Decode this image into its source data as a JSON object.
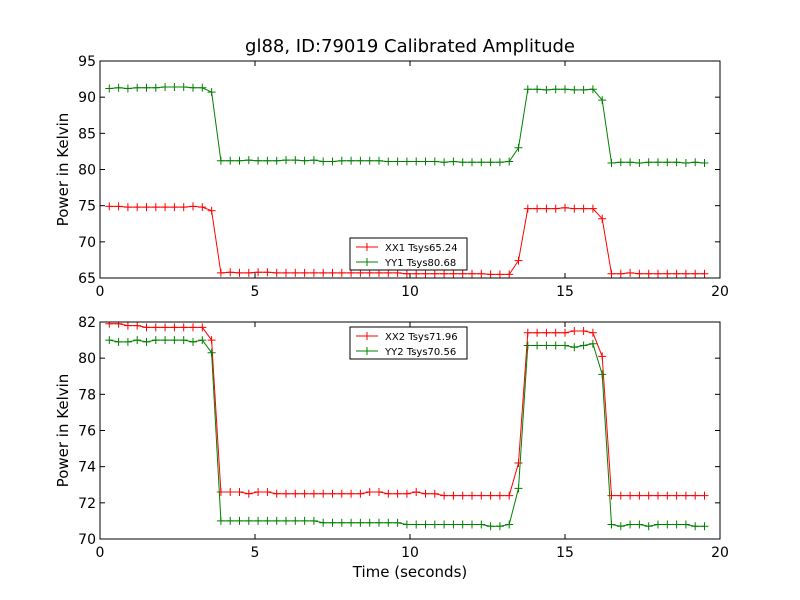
{
  "figure": {
    "title": "gl88, ID:79019 Calibrated Amplitude"
  },
  "chart_data": [
    {
      "type": "line",
      "xlabel": "",
      "ylabel": "Power in Kelvin",
      "xlim": [
        0,
        20
      ],
      "ylim": [
        65,
        95
      ],
      "xticks": [
        "0",
        "5",
        "10",
        "15",
        "20"
      ],
      "yticks": [
        "65",
        "70",
        "75",
        "80",
        "85",
        "90",
        "95"
      ],
      "grid": false,
      "legend_position": "bottom-center",
      "x": [
        0.3,
        0.6,
        0.9,
        1.2,
        1.5,
        1.8,
        2.1,
        2.4,
        2.7,
        3.0,
        3.3,
        3.6,
        3.9,
        4.2,
        4.5,
        4.8,
        5.1,
        5.4,
        5.7,
        6.0,
        6.3,
        6.6,
        6.9,
        7.2,
        7.5,
        7.8,
        8.1,
        8.4,
        8.7,
        9.0,
        9.3,
        9.6,
        9.9,
        10.2,
        10.5,
        10.8,
        11.1,
        11.4,
        11.7,
        12.0,
        12.3,
        12.6,
        12.9,
        13.2,
        13.5,
        13.8,
        14.1,
        14.4,
        14.7,
        15.0,
        15.3,
        15.6,
        15.9,
        16.2,
        16.5,
        16.8,
        17.1,
        17.4,
        17.7,
        18.0,
        18.3,
        18.6,
        18.9,
        19.2,
        19.5
      ],
      "series": [
        {
          "name": "XX1 Tsys65.24",
          "color": "#ff0000",
          "values": [
            74.9,
            74.9,
            74.8,
            74.8,
            74.8,
            74.8,
            74.8,
            74.8,
            74.8,
            74.9,
            74.8,
            74.3,
            65.7,
            65.8,
            65.7,
            65.7,
            65.8,
            65.8,
            65.7,
            65.7,
            65.7,
            65.7,
            65.7,
            65.7,
            65.7,
            65.7,
            65.7,
            65.7,
            65.7,
            65.7,
            65.7,
            65.7,
            65.6,
            65.6,
            65.6,
            65.6,
            65.6,
            65.6,
            65.6,
            65.6,
            65.6,
            65.5,
            65.5,
            65.5,
            67.4,
            74.6,
            74.6,
            74.6,
            74.6,
            74.7,
            74.6,
            74.6,
            74.6,
            73.2,
            65.6,
            65.6,
            65.7,
            65.6,
            65.6,
            65.6,
            65.6,
            65.6,
            65.6,
            65.6,
            65.6
          ]
        },
        {
          "name": "YY1 Tsys80.68",
          "color": "#008000",
          "values": [
            91.2,
            91.3,
            91.2,
            91.3,
            91.3,
            91.3,
            91.4,
            91.4,
            91.4,
            91.3,
            91.3,
            90.7,
            81.2,
            81.2,
            81.2,
            81.3,
            81.2,
            81.2,
            81.2,
            81.3,
            81.3,
            81.2,
            81.3,
            81.1,
            81.1,
            81.2,
            81.2,
            81.2,
            81.2,
            81.2,
            81.1,
            81.1,
            81.1,
            81.1,
            81.1,
            81.1,
            81.0,
            81.1,
            81.0,
            81.0,
            81.0,
            81.0,
            81.0,
            81.1,
            83.0,
            91.1,
            91.1,
            91.0,
            91.1,
            91.1,
            91.0,
            91.0,
            91.1,
            89.6,
            80.9,
            81.0,
            81.0,
            80.9,
            81.0,
            81.0,
            81.0,
            81.0,
            80.9,
            81.0,
            80.9
          ]
        }
      ]
    },
    {
      "type": "line",
      "xlabel": "Time (seconds)",
      "ylabel": "Power in Kelvin",
      "xlim": [
        0,
        20
      ],
      "ylim": [
        70,
        82
      ],
      "xticks": [
        "0",
        "5",
        "10",
        "15",
        "20"
      ],
      "yticks": [
        "70",
        "72",
        "74",
        "76",
        "78",
        "80",
        "82"
      ],
      "grid": false,
      "legend_position": "top-center",
      "x": [
        0.3,
        0.6,
        0.9,
        1.2,
        1.5,
        1.8,
        2.1,
        2.4,
        2.7,
        3.0,
        3.3,
        3.6,
        3.9,
        4.2,
        4.5,
        4.8,
        5.1,
        5.4,
        5.7,
        6.0,
        6.3,
        6.6,
        6.9,
        7.2,
        7.5,
        7.8,
        8.1,
        8.4,
        8.7,
        9.0,
        9.3,
        9.6,
        9.9,
        10.2,
        10.5,
        10.8,
        11.1,
        11.4,
        11.7,
        12.0,
        12.3,
        12.6,
        12.9,
        13.2,
        13.5,
        13.8,
        14.1,
        14.4,
        14.7,
        15.0,
        15.3,
        15.6,
        15.9,
        16.2,
        16.5,
        16.8,
        17.1,
        17.4,
        17.7,
        18.0,
        18.3,
        18.6,
        18.9,
        19.2,
        19.5
      ],
      "series": [
        {
          "name": "XX2 Tsys71.96",
          "color": "#ff0000",
          "values": [
            81.9,
            81.9,
            81.8,
            81.8,
            81.7,
            81.7,
            81.7,
            81.7,
            81.7,
            81.7,
            81.7,
            81.0,
            72.6,
            72.6,
            72.6,
            72.5,
            72.6,
            72.6,
            72.5,
            72.5,
            72.5,
            72.5,
            72.5,
            72.5,
            72.5,
            72.5,
            72.5,
            72.5,
            72.6,
            72.6,
            72.5,
            72.5,
            72.5,
            72.6,
            72.5,
            72.5,
            72.4,
            72.4,
            72.4,
            72.4,
            72.4,
            72.4,
            72.4,
            72.4,
            74.2,
            81.4,
            81.4,
            81.4,
            81.4,
            81.4,
            81.5,
            81.5,
            81.4,
            80.1,
            72.4,
            72.4,
            72.4,
            72.4,
            72.4,
            72.4,
            72.4,
            72.4,
            72.4,
            72.4,
            72.4
          ]
        },
        {
          "name": "YY2 Tsys70.56",
          "color": "#008000",
          "values": [
            81.0,
            80.9,
            80.9,
            81.0,
            80.9,
            81.0,
            81.0,
            81.0,
            81.0,
            80.9,
            81.0,
            80.3,
            71.0,
            71.0,
            71.0,
            71.0,
            71.0,
            71.0,
            71.0,
            71.0,
            71.0,
            71.0,
            71.0,
            70.9,
            70.9,
            70.9,
            70.9,
            70.9,
            70.9,
            70.9,
            70.9,
            70.9,
            70.8,
            70.8,
            70.8,
            70.8,
            70.8,
            70.8,
            70.8,
            70.8,
            70.8,
            70.7,
            70.7,
            70.8,
            72.8,
            80.7,
            80.7,
            80.7,
            80.7,
            80.7,
            80.6,
            80.7,
            80.8,
            79.1,
            70.8,
            70.7,
            70.8,
            70.8,
            70.7,
            70.8,
            70.8,
            70.8,
            70.8,
            70.7,
            70.7
          ]
        }
      ]
    }
  ]
}
